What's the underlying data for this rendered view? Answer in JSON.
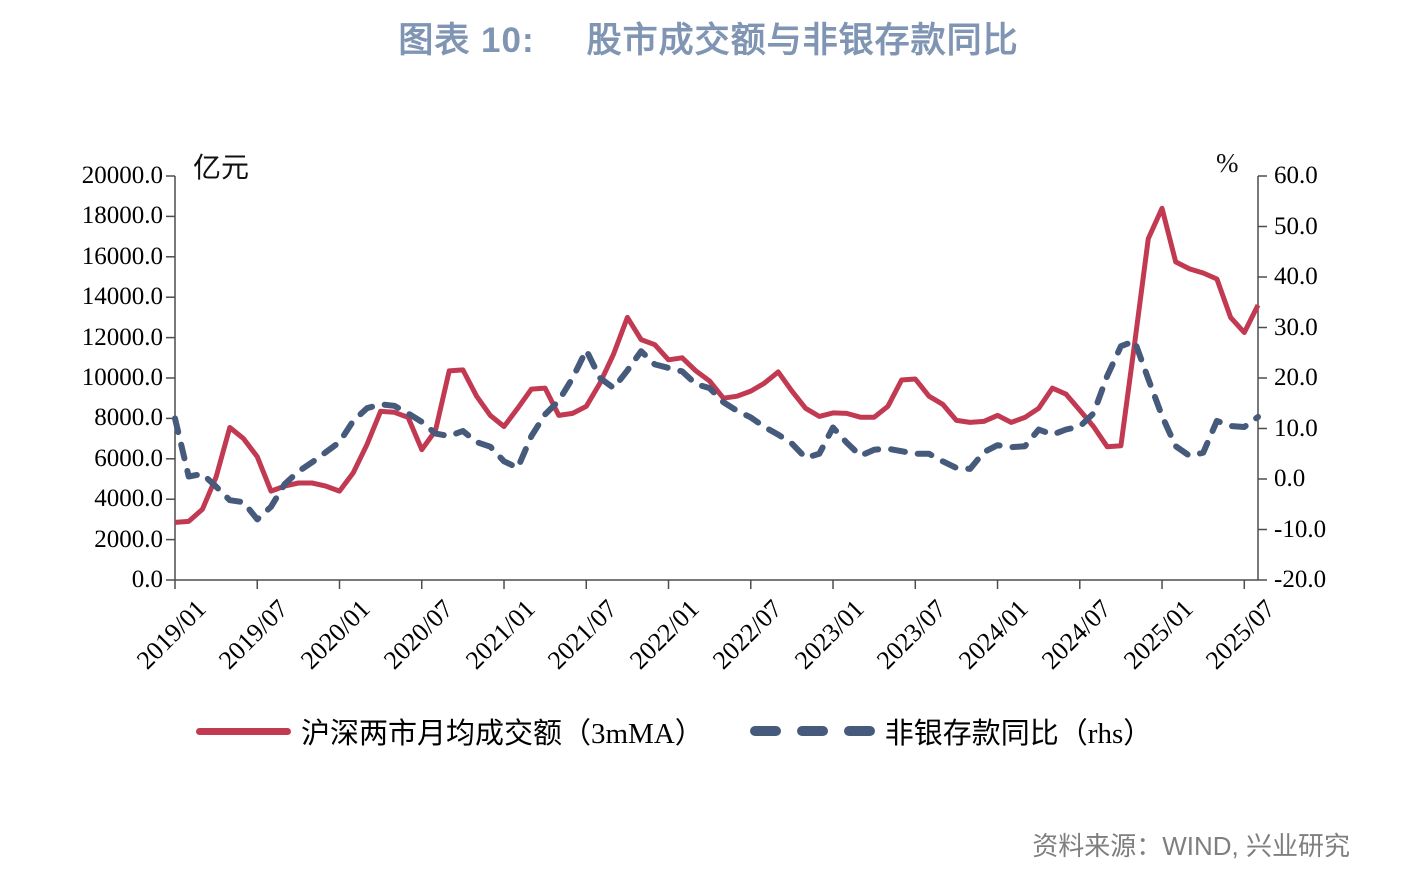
{
  "title": {
    "prefix": "图表 10:",
    "text": "股市成交额与非银存款同比"
  },
  "colors": {
    "title": "#8095B3",
    "turnover_line": "#C13A52",
    "deposit_line": "#465A7C",
    "axis": "#4D4D4D",
    "source_text": "#7F7F7F"
  },
  "legend": {
    "turnover_label": "沪深两市月均成交额（3mMA）",
    "deposit_label": "非银存款同比（rhs）"
  },
  "source": "资料来源：WIND, 兴业研究",
  "chart_data": {
    "type": "line",
    "title": "股市成交额与非银存款同比",
    "grid": false,
    "legend_position": "bottom",
    "left_axis": {
      "label": "亿元",
      "min": 0,
      "max": 20000,
      "step": 2000
    },
    "right_axis": {
      "label": "%",
      "min": -20,
      "max": 60,
      "step": 10
    },
    "left_tick_labels": [
      "0.0",
      "2000.0",
      "4000.0",
      "6000.0",
      "8000.0",
      "10000.0",
      "12000.0",
      "14000.0",
      "16000.0",
      "18000.0",
      "20000.0"
    ],
    "right_tick_labels": [
      "-20.0",
      "-10.0",
      "0.0",
      "10.0",
      "20.0",
      "30.0",
      "40.0",
      "50.0",
      "60.0"
    ],
    "x_tick_labels": [
      "2019/01",
      "2019/07",
      "2020/01",
      "2020/07",
      "2021/01",
      "2021/07",
      "2022/01",
      "2022/07",
      "2023/01",
      "2023/07",
      "2024/01",
      "2024/07",
      "2025/01",
      "2025/07"
    ],
    "x": [
      "2019/01",
      "2019/02",
      "2019/03",
      "2019/04",
      "2019/05",
      "2019/06",
      "2019/07",
      "2019/08",
      "2019/09",
      "2019/10",
      "2019/11",
      "2019/12",
      "2020/01",
      "2020/02",
      "2020/03",
      "2020/04",
      "2020/05",
      "2020/06",
      "2020/07",
      "2020/08",
      "2020/09",
      "2020/10",
      "2020/11",
      "2020/12",
      "2021/01",
      "2021/02",
      "2021/03",
      "2021/04",
      "2021/05",
      "2021/06",
      "2021/07",
      "2021/08",
      "2021/09",
      "2021/10",
      "2021/11",
      "2021/12",
      "2022/01",
      "2022/02",
      "2022/03",
      "2022/04",
      "2022/05",
      "2022/06",
      "2022/07",
      "2022/08",
      "2022/09",
      "2022/10",
      "2022/11",
      "2022/12",
      "2023/01",
      "2023/02",
      "2023/03",
      "2023/04",
      "2023/05",
      "2023/06",
      "2023/07",
      "2023/08",
      "2023/09",
      "2023/10",
      "2023/11",
      "2023/12",
      "2024/01",
      "2024/02",
      "2024/03",
      "2024/04",
      "2024/05",
      "2024/06",
      "2024/07",
      "2024/08",
      "2024/09",
      "2024/10",
      "2024/11",
      "2024/12",
      "2025/01",
      "2025/02",
      "2025/03",
      "2025/04",
      "2025/05",
      "2025/06",
      "2025/07",
      "2025/08"
    ],
    "series": [
      {
        "name": "沪深两市月均成交额（3mMA）",
        "axis": "left",
        "style": "solid",
        "color": "#C13A52",
        "values": [
          2850,
          2900,
          3500,
          5100,
          7550,
          7000,
          6100,
          4400,
          4650,
          4800,
          4800,
          4650,
          4400,
          5300,
          6700,
          8350,
          8300,
          8050,
          6450,
          7400,
          10350,
          10400,
          9100,
          8150,
          7600,
          8500,
          9450,
          9500,
          8150,
          8250,
          8600,
          9750,
          11200,
          13000,
          11900,
          11650,
          10900,
          11000,
          10350,
          9850,
          9000,
          9100,
          9350,
          9750,
          10300,
          9350,
          8500,
          8100,
          8270,
          8250,
          8060,
          8060,
          8600,
          9900,
          9950,
          9100,
          8700,
          7900,
          7800,
          7850,
          8150,
          7800,
          8050,
          8500,
          9500,
          9200,
          8400,
          7600,
          6600,
          6650,
          11700,
          16900,
          18400,
          15750,
          15400,
          15200,
          14900,
          13000,
          12250,
          13610
        ]
      },
      {
        "name": "非银存款同比（rhs）",
        "axis": "right",
        "style": "dashed",
        "color": "#465A7C",
        "values": [
          12.0,
          0.5,
          1.0,
          -1.5,
          -4.2,
          -4.6,
          -8.0,
          -5.5,
          -1.0,
          1.5,
          3.3,
          5.3,
          7.3,
          11.5,
          14.0,
          14.8,
          14.5,
          13.0,
          11.3,
          9.0,
          8.5,
          9.5,
          7.3,
          6.4,
          3.5,
          2.2,
          8.5,
          12.8,
          15.5,
          20.0,
          25.5,
          20.0,
          18.0,
          21.5,
          25.3,
          22.7,
          22.0,
          21.3,
          18.8,
          18.0,
          15.2,
          13.5,
          12.2,
          10.3,
          8.8,
          7.0,
          4.2,
          5.0,
          10.2,
          7.2,
          4.6,
          5.8,
          6.0,
          5.5,
          5.0,
          5.0,
          3.5,
          2.2,
          2.0,
          5.3,
          6.7,
          6.3,
          6.5,
          9.8,
          8.8,
          9.8,
          10.4,
          13.0,
          20.4,
          26.3,
          27.3,
          19.8,
          12.5,
          6.5,
          4.6,
          5.2,
          11.5,
          10.5,
          10.3,
          12.3
        ]
      }
    ]
  }
}
